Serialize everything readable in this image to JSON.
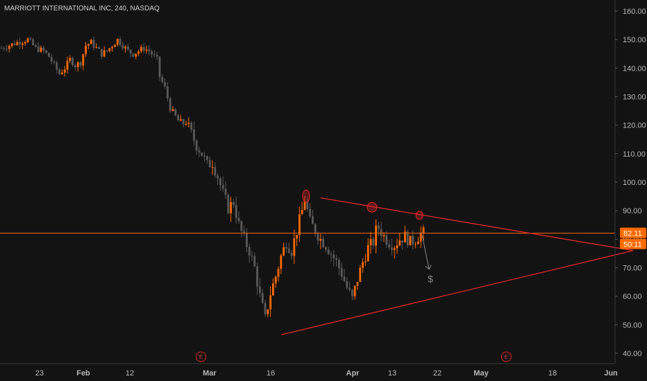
{
  "header": {
    "title": "MARRIOTT INTERNATIONAL INC, 240, NASDAQ"
  },
  "colors": {
    "background": "#131313",
    "up": "#ff6a00",
    "down": "#5a5a5a",
    "pattern": "#e0282b",
    "price_line": "#ff6a00",
    "axis_text": "#b8b8b8"
  },
  "price_tag": {
    "price": "82.11",
    "countdown": "50:11"
  },
  "x_axis": {
    "labels": [
      "23",
      "Feb",
      "12",
      "Mar",
      "16",
      "Apr",
      "13",
      "22",
      "May",
      "18",
      "Jun"
    ],
    "bold": [
      "Feb",
      "Mar",
      "Apr",
      "May",
      "Jun"
    ]
  },
  "earnings_markers": [
    "E",
    "E"
  ],
  "annotation": {
    "label": "$"
  },
  "chart_data": {
    "type": "candlestick",
    "ylim": [
      37,
      164
    ],
    "y_ticks": [
      "160.00",
      "150.00",
      "140.00",
      "130.00",
      "120.00",
      "110.00",
      "100.00",
      "90.00",
      "80.00",
      "70.00",
      "60.00",
      "50.00",
      "40.00"
    ],
    "current_price": 82.11,
    "x_date_labels": [
      {
        "date": "Jan 23",
        "label": "23"
      },
      {
        "date": "Feb 1",
        "label": "Feb"
      },
      {
        "date": "Feb 12",
        "label": "12"
      },
      {
        "date": "Mar 1",
        "label": "Mar"
      },
      {
        "date": "Mar 16",
        "label": "16"
      },
      {
        "date": "Apr 1",
        "label": "Apr"
      },
      {
        "date": "Apr 13",
        "label": "13"
      },
      {
        "date": "Apr 22",
        "label": "22"
      },
      {
        "date": "May 1",
        "label": "May"
      },
      {
        "date": "May 18",
        "label": "18"
      },
      {
        "date": "Jun 1",
        "label": "Jun"
      }
    ],
    "price_path": [
      [
        0,
        147
      ],
      [
        3,
        148
      ],
      [
        6,
        149
      ],
      [
        10,
        150
      ],
      [
        13,
        147
      ],
      [
        16,
        146
      ],
      [
        18,
        144
      ],
      [
        20,
        141
      ],
      [
        22,
        138
      ],
      [
        24,
        140
      ],
      [
        26,
        143
      ],
      [
        28,
        141
      ],
      [
        30,
        142
      ],
      [
        32,
        148
      ],
      [
        34,
        149
      ],
      [
        36,
        147
      ],
      [
        38,
        145
      ],
      [
        40,
        146
      ],
      [
        42,
        148
      ],
      [
        44,
        150
      ],
      [
        46,
        148
      ],
      [
        48,
        146
      ],
      [
        50,
        145
      ],
      [
        52,
        146
      ],
      [
        54,
        147
      ],
      [
        56,
        146
      ],
      [
        58,
        144
      ],
      [
        59,
        143
      ],
      [
        60,
        137
      ],
      [
        62,
        133
      ],
      [
        64,
        126
      ],
      [
        66,
        123
      ],
      [
        68,
        120
      ],
      [
        70,
        121
      ],
      [
        72,
        117
      ],
      [
        74,
        113
      ],
      [
        76,
        110
      ],
      [
        78,
        106
      ],
      [
        80,
        107
      ],
      [
        82,
        102
      ],
      [
        84,
        96
      ],
      [
        86,
        91
      ],
      [
        88,
        93
      ],
      [
        90,
        85
      ],
      [
        92,
        80
      ],
      [
        94,
        76
      ],
      [
        96,
        70
      ],
      [
        98,
        60
      ],
      [
        100,
        52
      ],
      [
        102,
        61
      ],
      [
        104,
        67
      ],
      [
        106,
        74
      ],
      [
        108,
        79
      ],
      [
        110,
        76
      ],
      [
        112,
        83
      ],
      [
        114,
        90
      ],
      [
        115,
        94
      ],
      [
        117,
        86
      ],
      [
        119,
        83
      ],
      [
        121,
        80
      ],
      [
        123,
        78
      ],
      [
        125,
        75
      ],
      [
        127,
        72
      ],
      [
        129,
        68
      ],
      [
        131,
        63
      ],
      [
        133,
        59
      ],
      [
        135,
        66
      ],
      [
        137,
        72
      ],
      [
        139,
        77
      ],
      [
        141,
        79
      ],
      [
        142,
        83
      ],
      [
        143,
        84
      ],
      [
        145,
        81
      ],
      [
        147,
        79
      ],
      [
        149,
        78
      ],
      [
        151,
        80
      ],
      [
        153,
        81
      ],
      [
        155,
        79
      ],
      [
        157,
        80
      ],
      [
        159,
        82
      ],
      [
        160,
        82.11
      ]
    ],
    "pattern": {
      "upper_trendline": [
        [
          121,
          94.5
        ],
        [
          239.5,
          76
        ]
      ],
      "lower_trendline": [
        [
          106,
          46.5
        ],
        [
          239.5,
          76
        ]
      ],
      "swing_highs": [
        115.5,
        140.5,
        158.5
      ]
    },
    "earnings_dates": [
      "Feb 28",
      "May 7"
    ],
    "grid": false,
    "legend": "none"
  }
}
